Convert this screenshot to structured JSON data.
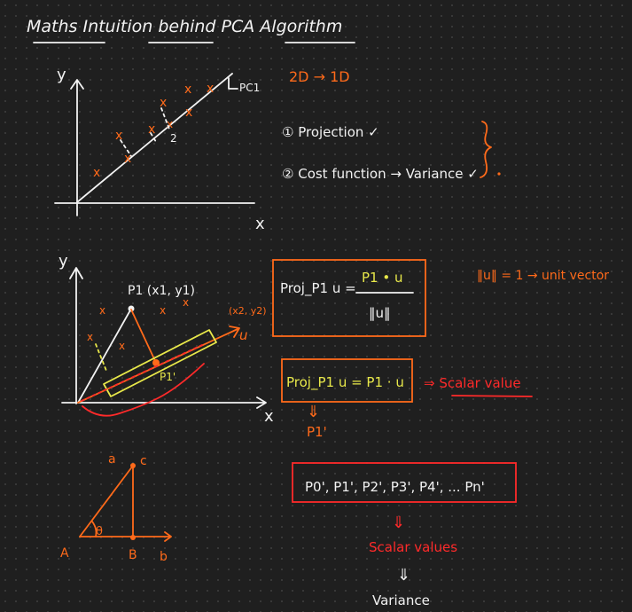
{
  "title": "Maths Intuition behind PCA Algorithm",
  "graph1": {
    "y_label": "y",
    "x_label": "x",
    "pc_label": "PC1",
    "dist_label": "2",
    "mark": "x"
  },
  "steps": {
    "dim": "2D → 1D",
    "step1": "① Projection ✓",
    "step2": "② Cost function → Variance ✓"
  },
  "graph2": {
    "y_label": "y",
    "x_label": "x",
    "p1_point": "P1 (x1, y1)",
    "p2_point": "(x2, y2)",
    "u_label": "u",
    "p1_proj": "P1'",
    "mark": "x"
  },
  "formulas": {
    "proj_lhs": "Proj_P1 u =",
    "proj_num": "P1 • u",
    "proj_den": "‖u‖",
    "unit_note": "‖u‖ = 1 → unit vector",
    "proj_simple": "Proj_P1 u = P1 · u",
    "scalar_value": "⇒ Scalar value",
    "arrow_down": "⇓",
    "p1_prime": "P1'"
  },
  "triangle": {
    "a_lower": "a",
    "c_lower": "c",
    "theta": "θ",
    "A": "A",
    "B": "B",
    "b_lower": "b"
  },
  "projections": {
    "list": "P0', P1', P2', P3', P4', ... Pn'",
    "arrow1": "⇓",
    "scalar_values": "Scalar values",
    "arrow2": "⇓",
    "variance": "Variance"
  }
}
